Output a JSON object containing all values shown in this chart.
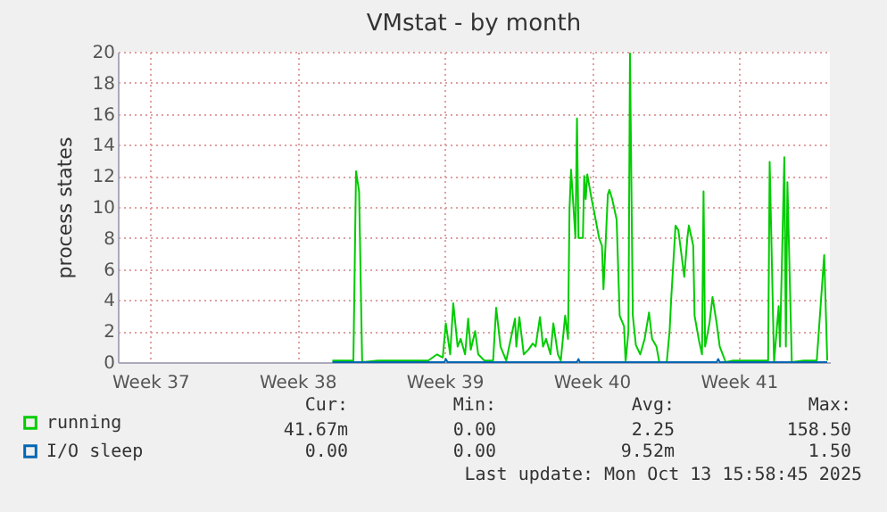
{
  "chart_data": {
    "type": "line",
    "title": "VMstat - by month",
    "ylabel": "process states",
    "xlim": [
      "2025-09-09T23:00",
      "2025-10-13T20:00"
    ],
    "xticks": [
      {
        "value": "2025-09-11T12:00",
        "label": "Week 37"
      },
      {
        "value": "2025-09-18T12:00",
        "label": "Week 38"
      },
      {
        "value": "2025-09-25T12:00",
        "label": "Week 39"
      },
      {
        "value": "2025-10-02T12:00",
        "label": "Week 40"
      },
      {
        "value": "2025-10-09T12:00",
        "label": "Week 41"
      }
    ],
    "ylim": [
      0,
      20
    ],
    "yticks": [
      0,
      2,
      4,
      6,
      8,
      10,
      12,
      14,
      16,
      18,
      20
    ],
    "grid": true,
    "legend": "bottom left",
    "series": [
      {
        "name": "running",
        "color": "#00cc00",
        "x": [
          "2025-09-20T04:00",
          "2025-09-21T00:30",
          "2025-09-21T04:00",
          "2025-09-21T07:00",
          "2025-09-21T10:30",
          "2025-09-21T14:00",
          "2025-09-22T08:00",
          "2025-09-23T11:00",
          "2025-09-24T17:30",
          "2025-09-25T03:30",
          "2025-09-25T10:00",
          "2025-09-25T13:30",
          "2025-09-25T18:30",
          "2025-09-25T22:00",
          "2025-09-26T03:00",
          "2025-09-26T06:30",
          "2025-09-26T11:30",
          "2025-09-26T15:00",
          "2025-09-26T18:00",
          "2025-09-26T23:00",
          "2025-09-27T02:30",
          "2025-09-27T09:30",
          "2025-09-27T19:30",
          "2025-09-27T23:00",
          "2025-09-28T04:00",
          "2025-09-28T10:30",
          "2025-09-28T20:30",
          "2025-09-28T22:00",
          "2025-09-29T01:30",
          "2025-09-29T06:30",
          "2025-09-29T11:45",
          "2025-09-29T16:45",
          "2025-09-29T20:00",
          "2025-09-30T01:00",
          "2025-09-30T04:30",
          "2025-09-30T08:00",
          "2025-09-30T13:00",
          "2025-09-30T16:15",
          "2025-09-30T21:30",
          "2025-10-01T00:45",
          "2025-10-01T05:45",
          "2025-10-01T09:00",
          "2025-10-01T10:45",
          "2025-10-01T12:30",
          "2025-10-01T17:30",
          "2025-10-01T19:15",
          "2025-10-01T21:00",
          "2025-10-02T02:00",
          "2025-10-02T03:30",
          "2025-10-02T05:15",
          "2025-10-02T07:00",
          "2025-10-02T12:00",
          "2025-10-02T15:30",
          "2025-10-02T20:30",
          "2025-10-02T23:45",
          "2025-10-03T01:30",
          "2025-10-03T06:30",
          "2025-10-03T08:15",
          "2025-10-03T11:30",
          "2025-10-03T16:30",
          "2025-10-03T20:00",
          "2025-10-04T01:00",
          "2025-10-04T02:45",
          "2025-10-04T06:00",
          "2025-10-04T07:45",
          "2025-10-04T11:00",
          "2025-10-04T14:30",
          "2025-10-04T19:30",
          "2025-10-05T00:30",
          "2025-10-05T05:30",
          "2025-10-05T09:00",
          "2025-10-05T14:00",
          "2025-10-05T17:15",
          "2025-10-06T01:45",
          "2025-10-06T05:00",
          "2025-10-06T06:45",
          "2025-10-06T11:45",
          "2025-10-06T15:00",
          "2025-10-06T21:45",
          "2025-10-07T01:15",
          "2025-10-07T03:00",
          "2025-10-07T08:00",
          "2025-10-07T09:30",
          "2025-10-07T14:30",
          "2025-10-07T18:00",
          "2025-10-07T19:45",
          "2025-10-07T21:30",
          "2025-10-08T02:30",
          "2025-10-08T06:00",
          "2025-10-08T10:45",
          "2025-10-08T14:15",
          "2025-10-08T21:00",
          "2025-10-09T05:15",
          "2025-10-10T01:30",
          "2025-10-10T21:30",
          "2025-10-10T23:15",
          "2025-10-11T04:15",
          "2025-10-11T09:30",
          "2025-10-11T11:00",
          "2025-10-11T16:00",
          "2025-10-11T17:45",
          "2025-10-11T19:30",
          "2025-10-12T00:30",
          "2025-10-12T14:00",
          "2025-10-13T05:00",
          "2025-10-13T13:30",
          "2025-10-13T17:00"
        ],
        "values": [
          0.1,
          0.1,
          0.1,
          12.3,
          11,
          0,
          0.1,
          0.1,
          0.1,
          0.5,
          0.3,
          2.5,
          0.5,
          3.8,
          1,
          1.5,
          0.5,
          2.8,
          0.8,
          2,
          0.5,
          0.1,
          0.1,
          3.5,
          1,
          0.1,
          2.8,
          1,
          2.9,
          0.5,
          0.8,
          1.2,
          1,
          2.9,
          1,
          1.5,
          0.5,
          2.5,
          0.5,
          0.1,
          3,
          1.5,
          9.9,
          12.4,
          8,
          15.7,
          8,
          8,
          12,
          10.5,
          12.1,
          10.5,
          9.5,
          8,
          7.5,
          4.7,
          10.8,
          11.1,
          10.5,
          9.2,
          3,
          2.3,
          0,
          2,
          19.9,
          3,
          1.1,
          0.5,
          1.5,
          3.2,
          1.5,
          1,
          0,
          0,
          2,
          4,
          8.8,
          8.5,
          5.5,
          8,
          8.8,
          7.5,
          3,
          1.4,
          0.5,
          11,
          1,
          2.5,
          4.2,
          2.5,
          1,
          0,
          0.1,
          0.1,
          0.1,
          12.9,
          0,
          3.6,
          1,
          13.2,
          1,
          11.6,
          0,
          0.1,
          0.1,
          6.9,
          0.1
        ]
      },
      {
        "name": "I/O sleep",
        "color": "#0066b3",
        "x": [
          "2025-09-20T04:00",
          "2025-09-24T02:30",
          "2025-09-25T12:00",
          "2025-09-25T13:30",
          "2025-09-25T15:30",
          "2025-09-29T00:00",
          "2025-10-01T19:15",
          "2025-10-01T21:00",
          "2025-10-01T22:30",
          "2025-10-05T07:15",
          "2025-10-08T10:45",
          "2025-10-08T12:30",
          "2025-10-08T14:15",
          "2025-10-13T17:00"
        ],
        "values": [
          0,
          0,
          0,
          0.2,
          0,
          0,
          0,
          0.2,
          0,
          0,
          0,
          0.2,
          0,
          0
        ]
      }
    ],
    "annotations": [
      "Cur:",
      "Min:",
      "Avg:",
      "Max:",
      "41.67m",
      "0.00",
      "2.25",
      "158.50",
      "0.00",
      "0.00",
      "9.52m",
      "1.50",
      "Last update: Mon Oct 13 15:58:45 2025"
    ]
  }
}
